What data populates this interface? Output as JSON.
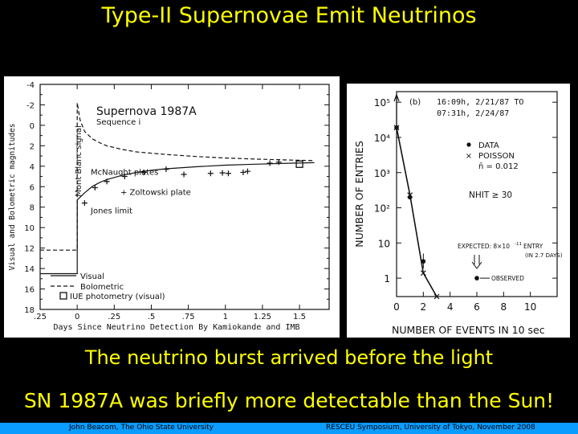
{
  "slide": {
    "title": "Type-II Supernovae Emit Neutrinos",
    "caption_1": "The neutrino burst arrived before the light",
    "caption_2": "SN 1987A was briefly more detectable than the Sun!",
    "footer_left": "John Beacom, The Ohio State University",
    "footer_right": "RESCEU Symposium, University of Tokyo, November 2008",
    "colors": {
      "background": "#000000",
      "text": "#ffff00",
      "footer_bar": "#0a9cff"
    }
  },
  "chart_data": [
    {
      "type": "line",
      "title": "Supernova 1987A",
      "subtitle": "Sequence i",
      "xlabel": "Days Since Neutrino Detection By Kamiokande and IMB",
      "ylabel": "Visual and Bolometric magnitudes",
      "xlim": [
        -0.25,
        1.7
      ],
      "ylim": [
        18,
        -4
      ],
      "y_inverted": true,
      "x_ticks": [
        -0.25,
        0,
        0.25,
        0.5,
        0.75,
        1,
        1.25,
        1.5
      ],
      "x_tick_labels": [
        ".25",
        "0",
        ".25",
        ".5",
        ".75",
        "1",
        "1.25",
        "1.5"
      ],
      "y_ticks": [
        -4,
        -2,
        0,
        2,
        4,
        6,
        8,
        10,
        12,
        14,
        16,
        18
      ],
      "y_tick_labels": [
        "-4",
        "-2",
        "0",
        "2",
        "4",
        "6",
        "8",
        "10",
        "12",
        "14",
        "16",
        "18"
      ],
      "annotations": [
        "Mont Blanc signal",
        "McNaught plates",
        "+ Zoltowski plate",
        "Jones limit"
      ],
      "legend": [
        "Visual",
        "Bolometric",
        "IUE photometry (visual)"
      ],
      "legend_position": "bottom-left",
      "series": [
        {
          "name": "Visual",
          "style": "solid",
          "x": [
            -0.25,
            0.0,
            0.0,
            0.05,
            0.1,
            0.15,
            0.2,
            0.3,
            0.4,
            0.5,
            0.6,
            0.8,
            1.0,
            1.2,
            1.45,
            1.6
          ],
          "y": [
            14.5,
            14.5,
            7.3,
            6.6,
            6.0,
            5.6,
            5.3,
            4.9,
            4.6,
            4.4,
            4.25,
            4.05,
            3.9,
            3.8,
            3.7,
            3.65
          ]
        },
        {
          "name": "Bolometric",
          "style": "dashed",
          "x": [
            -0.25,
            0.0,
            0.0,
            0.02,
            0.05,
            0.1,
            0.15,
            0.2,
            0.3,
            0.4,
            0.6,
            0.8,
            1.0,
            1.2,
            1.45,
            1.6
          ],
          "y": [
            12.2,
            12.2,
            -2.2,
            -0.5,
            0.6,
            1.3,
            1.7,
            2.0,
            2.35,
            2.6,
            2.85,
            3.05,
            3.2,
            3.3,
            3.4,
            3.45
          ]
        },
        {
          "name": "McNaught plates",
          "style": "plus",
          "x": [
            0.12,
            0.2,
            0.32,
            0.45,
            0.6
          ],
          "y": [
            6.1,
            5.5,
            5.0,
            4.6,
            4.3
          ]
        },
        {
          "name": "Zoltowski plate",
          "style": "plus",
          "x": [
            0.72,
            0.9,
            0.98,
            1.02,
            1.12,
            1.15,
            1.3,
            1.36
          ],
          "y": [
            4.8,
            4.7,
            4.65,
            4.7,
            4.6,
            4.5,
            3.7,
            3.6
          ]
        },
        {
          "name": "Jones limit",
          "style": "plus",
          "x": [
            0.05
          ],
          "y": [
            7.6
          ]
        },
        {
          "name": "IUE photometry (visual)",
          "style": "square",
          "x": [
            1.5
          ],
          "y": [
            3.8
          ]
        }
      ]
    },
    {
      "type": "scatter",
      "title": "(b) 16:09h, 2/21/87 TO 07:31h, 2/24/87",
      "panel_label": "(b)",
      "time_from": "16:09h, 2/21/87 TO",
      "time_to": "07:31h, 2/24/87",
      "xlabel": "NUMBER OF EVENTS IN 10 sec",
      "ylabel": "NUMBER OF ENTRIES",
      "y_scale": "log",
      "xlim": [
        0,
        12
      ],
      "ylim": [
        0.3,
        200000
      ],
      "x_ticks": [
        0,
        2,
        4,
        6,
        8,
        10
      ],
      "x_tick_labels": [
        "0",
        "2",
        "4",
        "6",
        "8",
        "10"
      ],
      "y_ticks": [
        1,
        10,
        100,
        1000,
        10000,
        100000
      ],
      "y_tick_labels": [
        "1",
        "10",
        "10²",
        "10³",
        "10⁴",
        "10⁵"
      ],
      "legend": [
        "DATA",
        "POISSON",
        "n̄ = 0.012"
      ],
      "legend_position": "top-right",
      "nhit_label": "NHIT ≥ 30",
      "expected_label": "EXPECTED: 8×10",
      "expected_exponent": "-11",
      "expected_tail": "ENTRY",
      "expected_sub": "(IN 2.7 DAYS)",
      "observed_label": "OBSERVED",
      "series": [
        {
          "name": "DATA",
          "x": [
            0,
            1,
            2,
            6
          ],
          "y": [
            19000,
            200,
            3,
            1
          ]
        },
        {
          "name": "POISSON",
          "x": [
            0,
            1,
            2,
            3
          ],
          "y": [
            19000,
            230,
            1.4,
            0.3
          ]
        }
      ]
    }
  ]
}
